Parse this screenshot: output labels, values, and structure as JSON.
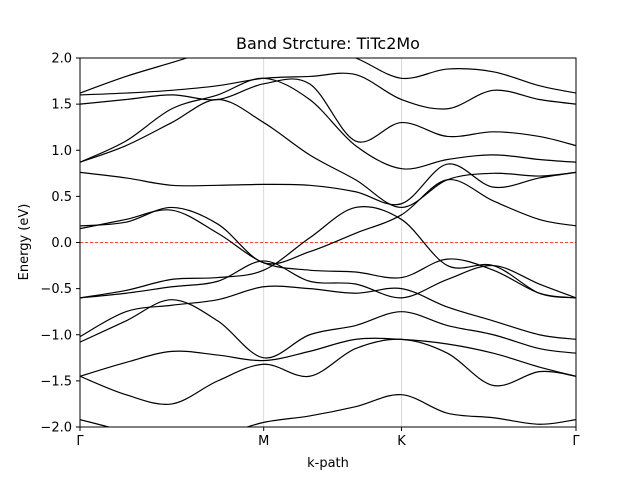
{
  "chart_data": {
    "type": "line",
    "title": "Band Strcture: TiTc2Mo",
    "xlabel": "k-path",
    "ylabel": "Energy (eV)",
    "ylim": [
      -2.0,
      2.0
    ],
    "yticks": [
      "−2.0",
      "−1.5",
      "−1.0",
      "−0.5",
      "0.0",
      "0.5",
      "1.0",
      "1.5",
      "2.0"
    ],
    "ytick_values": [
      -2.0,
      -1.5,
      -1.0,
      -0.5,
      0.0,
      0.5,
      1.0,
      1.5,
      2.0
    ],
    "k_points": [
      "Γ",
      "M",
      "K",
      "Γ"
    ],
    "k_positions": [
      0,
      1,
      1.75,
      2.7
    ],
    "fermi_level": 0.0,
    "fermi_color": "#ff0000",
    "grid": "vertical lines at high-symmetry points",
    "series_color": "#000000",
    "x": [
      0,
      0.25,
      0.5,
      0.75,
      1.0,
      1.25,
      1.5,
      1.75,
      2.0,
      2.25,
      2.5,
      2.7
    ],
    "series": [
      {
        "values": [
          -1.92,
          -2.05,
          -2.2,
          -2.1,
          -1.95,
          -1.88,
          -1.78,
          -1.65,
          -1.85,
          -1.9,
          -1.97,
          -1.92
        ]
      },
      {
        "values": [
          -1.45,
          -1.65,
          -1.75,
          -1.5,
          -1.32,
          -1.45,
          -1.15,
          -1.05,
          -1.2,
          -1.55,
          -1.4,
          -1.45
        ]
      },
      {
        "values": [
          -1.45,
          -1.3,
          -1.18,
          -1.22,
          -1.28,
          -1.18,
          -1.05,
          -1.05,
          -1.1,
          -1.2,
          -1.35,
          -1.45
        ]
      },
      {
        "values": [
          -1.08,
          -0.85,
          -0.62,
          -0.85,
          -1.25,
          -1.0,
          -0.9,
          -0.75,
          -0.9,
          -1.0,
          -1.15,
          -1.2
        ]
      },
      {
        "values": [
          -1.02,
          -0.75,
          -0.68,
          -0.62,
          -0.48,
          -0.5,
          -0.55,
          -0.5,
          -0.7,
          -0.85,
          -1.0,
          -1.05
        ]
      },
      {
        "values": [
          -0.6,
          -0.55,
          -0.48,
          -0.42,
          -0.2,
          -0.42,
          -0.45,
          -0.6,
          -0.4,
          -0.25,
          -0.45,
          -0.6
        ]
      },
      {
        "values": [
          -0.6,
          -0.52,
          -0.4,
          -0.38,
          -0.3,
          0.05,
          0.38,
          0.25,
          -0.25,
          -0.25,
          -0.55,
          -0.6
        ]
      },
      {
        "values": [
          0.15,
          0.25,
          0.35,
          0.1,
          -0.22,
          -0.3,
          -0.32,
          -0.38,
          -0.18,
          -0.3,
          -0.55,
          -0.6
        ]
      },
      {
        "values": [
          0.18,
          0.22,
          0.38,
          0.2,
          -0.22,
          -0.1,
          0.1,
          0.3,
          0.68,
          0.45,
          0.25,
          0.18
        ]
      },
      {
        "values": [
          0.76,
          0.7,
          0.62,
          0.62,
          0.63,
          0.62,
          0.55,
          0.42,
          0.85,
          0.6,
          0.7,
          0.76
        ]
      },
      {
        "values": [
          0.87,
          1.05,
          1.3,
          1.55,
          1.3,
          0.95,
          0.68,
          0.38,
          0.68,
          0.75,
          0.72,
          0.76
        ]
      },
      {
        "values": [
          0.87,
          1.1,
          1.45,
          1.6,
          1.78,
          1.55,
          1.05,
          0.8,
          0.9,
          0.95,
          0.9,
          0.87
        ]
      },
      {
        "values": [
          1.5,
          1.55,
          1.6,
          1.55,
          1.72,
          1.72,
          1.1,
          1.3,
          1.15,
          1.2,
          1.15,
          1.05
        ]
      },
      {
        "values": [
          1.6,
          1.62,
          1.65,
          1.7,
          1.78,
          1.8,
          1.82,
          1.55,
          1.45,
          1.65,
          1.55,
          1.5
        ]
      },
      {
        "values": [
          1.62,
          1.8,
          1.95,
          2.1,
          2.2,
          2.15,
          2.0,
          1.78,
          1.88,
          1.85,
          1.7,
          1.62
        ]
      }
    ]
  }
}
